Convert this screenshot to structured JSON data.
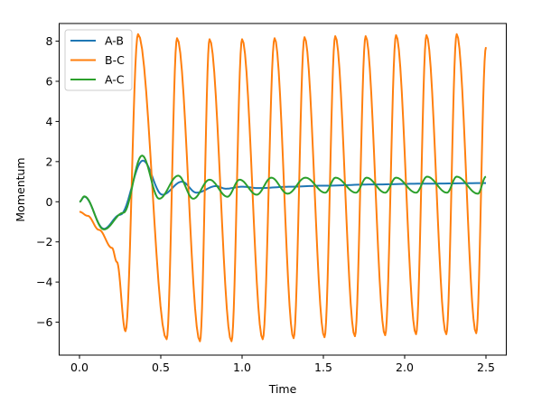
{
  "chart_data": {
    "type": "line",
    "title": "",
    "xlabel": "Time",
    "ylabel": "Momentum",
    "xlim": [
      -0.125,
      2.625
    ],
    "ylim": [
      -7.64,
      8.88
    ],
    "xticks": [
      0.0,
      0.5,
      1.0,
      1.5,
      2.0,
      2.5
    ],
    "xtick_labels": [
      "0.0",
      "0.5",
      "1.0",
      "1.5",
      "2.0",
      "2.5"
    ],
    "yticks": [
      -6,
      -4,
      -2,
      0,
      2,
      4,
      6,
      8
    ],
    "ytick_labels": [
      "−6",
      "−4",
      "−2",
      "0",
      "2",
      "4",
      "6",
      "8"
    ],
    "grid": false,
    "legend_position": "top-left",
    "series": [
      {
        "name": "A-B",
        "color": "#1f77b4",
        "points": [
          [
            0,
            0
          ],
          [
            0.03,
            0.25
          ],
          [
            0.15,
            -1.35
          ],
          [
            0.25,
            -0.65
          ],
          [
            0.39,
            2.05
          ],
          [
            0.51,
            0.35
          ],
          [
            0.63,
            1.0
          ],
          [
            0.72,
            0.45
          ],
          [
            0.84,
            0.78
          ],
          [
            0.9,
            0.65
          ],
          [
            1.0,
            0.75
          ],
          [
            1.1,
            0.68
          ],
          [
            1.3,
            0.75
          ],
          [
            1.5,
            0.8
          ],
          [
            1.8,
            0.86
          ],
          [
            2.1,
            0.9
          ],
          [
            2.5,
            0.93
          ]
        ]
      },
      {
        "name": "B-C",
        "color": "#ff7f0e",
        "points": [
          [
            0,
            -0.5
          ],
          [
            0.05,
            -0.7
          ],
          [
            0.12,
            -1.4
          ],
          [
            0.2,
            -2.3
          ],
          [
            0.23,
            -3.0
          ],
          [
            0.283,
            -6.45
          ],
          [
            0.36,
            8.35
          ],
          [
            0.536,
            -6.85
          ],
          [
            0.6,
            8.15
          ],
          [
            0.741,
            -6.95
          ],
          [
            0.8,
            8.1
          ],
          [
            0.935,
            -6.95
          ],
          [
            1.0,
            8.1
          ],
          [
            1.127,
            -6.85
          ],
          [
            1.2,
            8.15
          ],
          [
            1.317,
            -6.8
          ],
          [
            1.384,
            8.2
          ],
          [
            1.507,
            -6.75
          ],
          [
            1.573,
            8.25
          ],
          [
            1.694,
            -6.7
          ],
          [
            1.76,
            8.25
          ],
          [
            1.88,
            -6.65
          ],
          [
            1.947,
            8.3
          ],
          [
            2.07,
            -6.6
          ],
          [
            2.134,
            8.3
          ],
          [
            2.256,
            -6.6
          ],
          [
            2.32,
            8.35
          ],
          [
            2.44,
            -6.55
          ],
          [
            2.5,
            7.7
          ]
        ]
      },
      {
        "name": "A-C",
        "color": "#2ca02c",
        "points": [
          [
            0,
            0
          ],
          [
            0.03,
            0.27
          ],
          [
            0.15,
            -1.38
          ],
          [
            0.27,
            -0.55
          ],
          [
            0.385,
            2.3
          ],
          [
            0.49,
            0.15
          ],
          [
            0.607,
            1.3
          ],
          [
            0.7,
            0.15
          ],
          [
            0.8,
            1.1
          ],
          [
            0.91,
            0.25
          ],
          [
            0.985,
            1.1
          ],
          [
            1.09,
            0.35
          ],
          [
            1.18,
            1.2
          ],
          [
            1.28,
            0.4
          ],
          [
            1.39,
            1.2
          ],
          [
            1.511,
            0.45
          ],
          [
            1.575,
            1.2
          ],
          [
            1.7,
            0.45
          ],
          [
            1.766,
            1.2
          ],
          [
            1.88,
            0.45
          ],
          [
            1.947,
            1.2
          ],
          [
            2.07,
            0.45
          ],
          [
            2.138,
            1.25
          ],
          [
            2.26,
            0.45
          ],
          [
            2.32,
            1.25
          ],
          [
            2.45,
            0.4
          ],
          [
            2.5,
            1.25
          ]
        ]
      }
    ]
  }
}
